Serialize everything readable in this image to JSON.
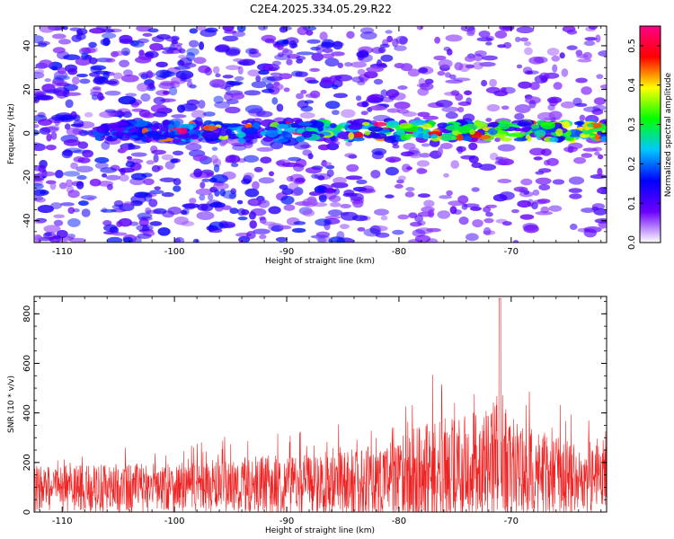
{
  "title": "C2E4.2025.334.05.29.R22",
  "chart_data": [
    {
      "type": "heatmap",
      "name": "spectrogram",
      "xlabel": "Height of straight line (km)",
      "ylabel": "Frequency (Hz)",
      "xlim": [
        -112.5,
        -61.5
      ],
      "ylim": [
        -50,
        49
      ],
      "xticks": [
        -110,
        -100,
        -90,
        -80,
        -70
      ],
      "xtick_labels": [
        "-110",
        "-100",
        "-90",
        "-80",
        "-70"
      ],
      "yticks": [
        -40,
        -20,
        0,
        20,
        40
      ],
      "ytick_labels": [
        "-40",
        "-20",
        "0",
        "20",
        "40"
      ],
      "band": {
        "center_hz": 1,
        "half_width_hz": 4,
        "start_km": -107
      },
      "colorbar": {
        "label": "Normalized spectral amplitude",
        "range": [
          0,
          0.55
        ],
        "ticks": [
          0,
          0.1,
          0.2,
          0.3,
          0.4,
          0.5
        ],
        "tick_labels": [
          "0.0",
          "0.1",
          "0.2",
          "0.3",
          "0.4",
          "0.5"
        ],
        "colors": [
          "#ffffff",
          "#6a00ff",
          "#0000ff",
          "#00c8ff",
          "#00ff00",
          "#ffff00",
          "#ff0000",
          "#ff0088"
        ]
      }
    },
    {
      "type": "line",
      "name": "snr",
      "xlabel": "Height of straight line (km)",
      "ylabel": "SNR (10 * v/v)",
      "xlim": [
        -112.5,
        -61.5
      ],
      "ylim": [
        0,
        870
      ],
      "xticks": [
        -110,
        -100,
        -90,
        -80,
        -70
      ],
      "xtick_labels": [
        "-110",
        "-100",
        "-90",
        "-80",
        "-70"
      ],
      "yticks": [
        0,
        200,
        400,
        600,
        800
      ],
      "ytick_labels": [
        "0",
        "200",
        "400",
        "600",
        "800"
      ],
      "color": "#ee2222",
      "envelope": {
        "x": [
          -112.5,
          -105,
          -100,
          -95,
          -90,
          -85,
          -80,
          -78,
          -75,
          -72,
          -71,
          -70,
          -68,
          -65,
          -61.5
        ],
        "base": [
          95,
          95,
          100,
          105,
          110,
          115,
          130,
          150,
          160,
          180,
          200,
          160,
          150,
          140,
          130
        ],
        "amp": [
          170,
          180,
          190,
          200,
          230,
          240,
          300,
          400,
          420,
          440,
          520,
          380,
          330,
          300,
          250
        ]
      },
      "peak": {
        "x": -71,
        "y": 862
      }
    }
  ]
}
